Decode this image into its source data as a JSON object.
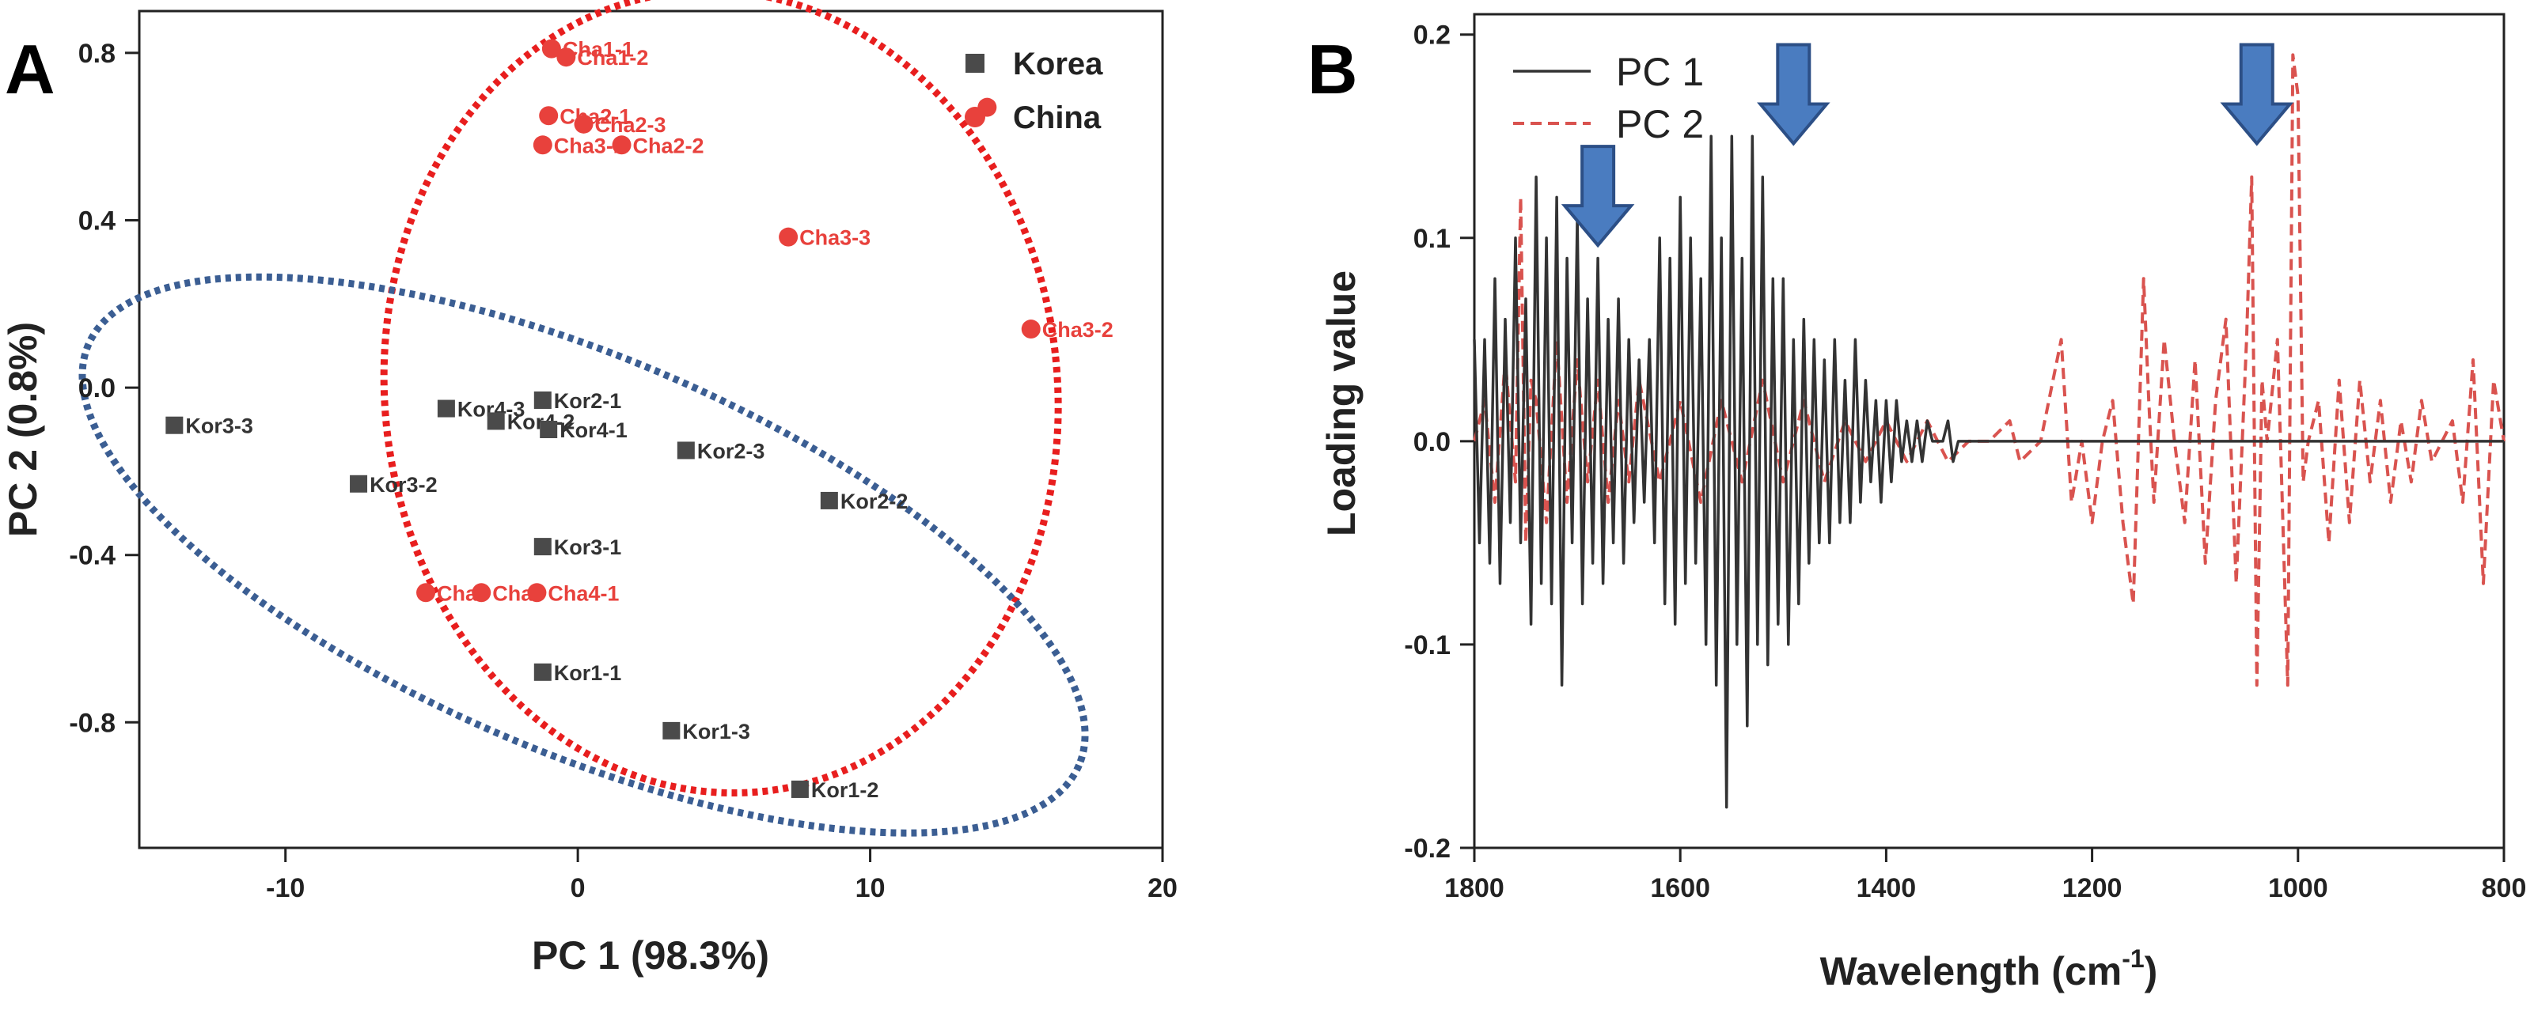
{
  "panels": {
    "a_letter": "A",
    "b_letter": "B"
  },
  "chart_data": [
    {
      "type": "scatter",
      "xlabel": "PC 1 (98.3%)",
      "ylabel": "PC 2 (0.8%)",
      "xlim": [
        -15,
        20
      ],
      "ylim": [
        -1.1,
        0.9
      ],
      "x_ticks": [
        "-10",
        "0",
        "10",
        "20"
      ],
      "y_ticks": [
        "-0.8",
        "-0.4",
        "0.0",
        "0.4",
        "0.8"
      ],
      "x_tick_values": [
        -10,
        0,
        10,
        20
      ],
      "y_tick_values": [
        -0.8,
        -0.4,
        0.0,
        0.4,
        0.8
      ],
      "grid": false,
      "legend_position": "top-right",
      "colors": {
        "Korea": "#4a4a4a",
        "China": "#e8413c",
        "korea_ellipse": "#3b5e93",
        "china_ellipse": "#e81e1e"
      },
      "series": [
        {
          "name": "Korea",
          "marker": "square",
          "points": [
            {
              "label": "Kor3-3",
              "x": -13.8,
              "y": -0.09
            },
            {
              "label": "Kor3-2",
              "x": -7.5,
              "y": -0.23
            },
            {
              "label": "Kor4-3",
              "x": -4.5,
              "y": -0.05
            },
            {
              "label": "Kor4-2",
              "x": -2.8,
              "y": -0.08
            },
            {
              "label": "Kor2-1",
              "x": -1.2,
              "y": -0.03
            },
            {
              "label": "Kor4-1",
              "x": -1.0,
              "y": -0.1
            },
            {
              "label": "Kor2-3",
              "x": 3.7,
              "y": -0.15
            },
            {
              "label": "Kor2-2",
              "x": 8.6,
              "y": -0.27
            },
            {
              "label": "Kor3-1",
              "x": -1.2,
              "y": -0.38
            },
            {
              "label": "Kor1-1",
              "x": -1.2,
              "y": -0.68
            },
            {
              "label": "Kor1-3",
              "x": 3.2,
              "y": -0.82
            },
            {
              "label": "Kor1-2",
              "x": 7.6,
              "y": -0.96
            }
          ]
        },
        {
          "name": "China",
          "marker": "circle",
          "points": [
            {
              "label": "Cha1-1",
              "x": -0.9,
              "y": 0.81
            },
            {
              "label": "Cha1-2",
              "x": -0.4,
              "y": 0.79
            },
            {
              "label": "Cha2-1",
              "x": -1.0,
              "y": 0.65
            },
            {
              "label": "Cha2-3",
              "x": 0.2,
              "y": 0.63
            },
            {
              "label": "Cha3-1",
              "x": -1.2,
              "y": 0.58
            },
            {
              "label": "Cha2-2",
              "x": 1.5,
              "y": 0.58
            },
            {
              "label": "Cha3-3",
              "x": 7.2,
              "y": 0.36
            },
            {
              "label": "Cha3-2",
              "x": 15.5,
              "y": 0.14
            },
            {
              "label": "",
              "x": 14.0,
              "y": 0.67
            },
            {
              "label": "Cha",
              "x": -5.2,
              "y": -0.49
            },
            {
              "label": "Cha",
              "x": -3.3,
              "y": -0.49
            },
            {
              "label": "Cha4-1",
              "x": -1.4,
              "y": -0.49
            }
          ]
        }
      ]
    },
    {
      "type": "line",
      "xlabel": "Wavelength (cm-1)",
      "xlabel_main": "Wavelength (cm",
      "xlabel_sup": "-1",
      "xlabel_close": ")",
      "ylabel": "Loading value",
      "xlim": [
        1800,
        800
      ],
      "ylim": [
        -0.2,
        0.21
      ],
      "x_ticks": [
        "1800",
        "1600",
        "1400",
        "1200",
        "1000",
        "800"
      ],
      "y_ticks": [
        "-0.2",
        "-0.1",
        "0.0",
        "0.1",
        "0.2"
      ],
      "x_tick_values": [
        1800,
        1600,
        1400,
        1200,
        1000,
        800
      ],
      "y_tick_values": [
        -0.2,
        -0.1,
        0.0,
        0.1,
        0.2
      ],
      "grid": false,
      "legend_position": "top-left",
      "colors": {
        "PC 1": "#333333",
        "PC 2": "#d9534f",
        "arrow_fill": "#4a7cc0",
        "arrow_stroke": "#2c4f86"
      },
      "series": [
        {
          "name": "PC 1",
          "style": "solid",
          "x": [
            1800,
            1795,
            1790,
            1785,
            1780,
            1775,
            1770,
            1765,
            1760,
            1755,
            1750,
            1745,
            1740,
            1735,
            1730,
            1725,
            1720,
            1715,
            1710,
            1705,
            1700,
            1695,
            1690,
            1685,
            1680,
            1675,
            1670,
            1665,
            1660,
            1655,
            1650,
            1645,
            1640,
            1635,
            1630,
            1625,
            1620,
            1615,
            1610,
            1605,
            1600,
            1595,
            1590,
            1585,
            1580,
            1575,
            1570,
            1565,
            1560,
            1555,
            1550,
            1545,
            1540,
            1535,
            1530,
            1525,
            1520,
            1515,
            1510,
            1505,
            1500,
            1495,
            1490,
            1485,
            1480,
            1475,
            1470,
            1465,
            1460,
            1455,
            1450,
            1445,
            1440,
            1435,
            1430,
            1425,
            1420,
            1415,
            1410,
            1405,
            1400,
            1395,
            1390,
            1385,
            1380,
            1375,
            1370,
            1365,
            1360,
            1355,
            1350,
            1345,
            1340,
            1335,
            1330,
            1325,
            1320,
            1315,
            1310,
            1305,
            1300,
            1290,
            1280,
            1270,
            1260,
            1250,
            1200,
            1150,
            1100,
            1050,
            1040,
            1000,
            950,
            900,
            850,
            800
          ],
          "values": [
            0.05,
            -0.05,
            0.05,
            -0.06,
            0.08,
            -0.07,
            0.06,
            -0.04,
            0.1,
            -0.05,
            0.07,
            -0.09,
            0.13,
            -0.07,
            0.1,
            -0.08,
            0.12,
            -0.12,
            0.09,
            -0.05,
            0.11,
            -0.08,
            0.07,
            -0.06,
            0.09,
            -0.07,
            0.06,
            -0.05,
            0.07,
            -0.06,
            0.05,
            -0.04,
            0.04,
            -0.03,
            0.05,
            -0.05,
            0.1,
            -0.08,
            0.09,
            -0.09,
            0.12,
            -0.07,
            0.1,
            -0.06,
            0.08,
            -0.1,
            0.15,
            -0.12,
            0.1,
            -0.18,
            0.15,
            -0.1,
            0.09,
            -0.14,
            0.15,
            -0.1,
            0.13,
            -0.11,
            0.08,
            -0.09,
            0.08,
            -0.1,
            0.05,
            -0.08,
            0.06,
            -0.06,
            0.05,
            -0.05,
            0.04,
            -0.05,
            0.05,
            -0.04,
            0.03,
            -0.04,
            0.05,
            -0.03,
            0.03,
            -0.02,
            0.02,
            -0.03,
            0.02,
            -0.02,
            0.02,
            -0.01,
            0.01,
            -0.01,
            0.01,
            -0.01,
            0.01,
            0.0,
            0.0,
            0.0,
            0.01,
            -0.01,
            0.0,
            0.0,
            0.0,
            0.0,
            0.0,
            0.0,
            0.0,
            0.0,
            0.0,
            0.0,
            0.0,
            0.0,
            0.0,
            0.0,
            0.0,
            0.0,
            0.0,
            0.0,
            0.0,
            0.0,
            0.0,
            0.0
          ]
        },
        {
          "name": "PC 2",
          "style": "dashed",
          "x": [
            1800,
            1790,
            1780,
            1770,
            1760,
            1755,
            1750,
            1745,
            1740,
            1730,
            1720,
            1710,
            1700,
            1690,
            1680,
            1670,
            1660,
            1650,
            1640,
            1620,
            1600,
            1580,
            1560,
            1540,
            1520,
            1500,
            1480,
            1460,
            1440,
            1420,
            1400,
            1380,
            1360,
            1340,
            1320,
            1300,
            1280,
            1270,
            1250,
            1230,
            1220,
            1210,
            1200,
            1190,
            1180,
            1170,
            1160,
            1150,
            1145,
            1140,
            1130,
            1120,
            1110,
            1100,
            1090,
            1080,
            1070,
            1060,
            1050,
            1045,
            1040,
            1035,
            1030,
            1020,
            1010,
            1005,
            1000,
            995,
            990,
            980,
            970,
            960,
            950,
            940,
            930,
            920,
            910,
            900,
            890,
            880,
            870,
            860,
            850,
            840,
            830,
            820,
            810,
            800
          ],
          "values": [
            0.0,
            0.02,
            -0.03,
            0.04,
            -0.02,
            0.12,
            -0.05,
            0.03,
            0.02,
            -0.04,
            0.05,
            -0.03,
            0.04,
            -0.02,
            0.03,
            -0.03,
            0.02,
            -0.02,
            0.03,
            -0.02,
            0.02,
            -0.03,
            0.02,
            -0.02,
            0.03,
            -0.02,
            0.02,
            -0.02,
            0.01,
            -0.01,
            0.01,
            -0.01,
            0.01,
            -0.01,
            0.0,
            0.0,
            0.01,
            -0.01,
            0.0,
            0.05,
            -0.03,
            0.0,
            -0.04,
            0.0,
            0.02,
            -0.04,
            -0.08,
            0.08,
            0.02,
            -0.03,
            0.05,
            0.0,
            -0.04,
            0.04,
            -0.06,
            0.02,
            0.06,
            -0.07,
            0.05,
            0.13,
            -0.12,
            0.03,
            0.0,
            0.05,
            -0.12,
            0.19,
            0.17,
            -0.02,
            0.0,
            0.02,
            -0.05,
            0.03,
            -0.04,
            0.03,
            -0.02,
            0.02,
            -0.03,
            0.01,
            -0.02,
            0.02,
            -0.01,
            0.0,
            0.01,
            -0.03,
            0.04,
            -0.07,
            0.03,
            0.0
          ]
        }
      ],
      "annotations": [
        {
          "type": "down-arrow",
          "x": 1680,
          "y": 0.145
        },
        {
          "type": "down-arrow",
          "x": 1490,
          "y": 0.195
        },
        {
          "type": "down-arrow",
          "x": 1040,
          "y": 0.195
        }
      ]
    }
  ]
}
